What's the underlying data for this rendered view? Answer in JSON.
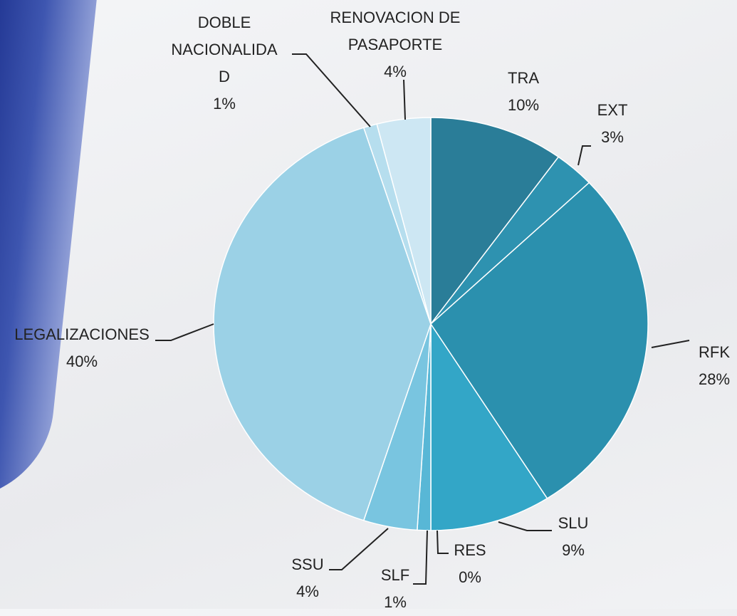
{
  "chart_data": {
    "type": "pie",
    "categories": [
      "TRA",
      "EXT",
      "RFK",
      "SLU",
      "RES",
      "SLF",
      "SSU",
      "LEGALIZACIONES",
      "DOBLE NACIONALIDAD",
      "RENOVACION DE PASAPORTE"
    ],
    "values": [
      10,
      3,
      28,
      9,
      0,
      1,
      4,
      40,
      1,
      4
    ],
    "value_labels": [
      "10%",
      "3%",
      "28%",
      "9%",
      "0%",
      "1%",
      "4%",
      "40%",
      "1%",
      "4%"
    ],
    "colors": [
      "#2a7d98",
      "#2e92b0",
      "#2b90ae",
      "#33a6c7",
      "#3eadd0",
      "#58b7d6",
      "#79c5e0",
      "#9bd1e6",
      "#b6deee",
      "#cde7f3"
    ]
  }
}
